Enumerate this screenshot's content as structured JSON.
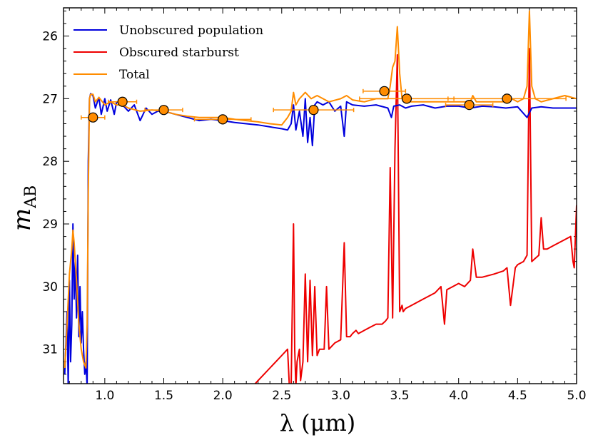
{
  "chart_data": {
    "type": "line",
    "title": "",
    "xlabel": "λ (μm)",
    "ylabel_main": "m",
    "ylabel_sub": "AB",
    "xlim": [
      0.65,
      5.0
    ],
    "ylim": [
      31.55,
      25.55
    ],
    "y_inverted": true,
    "grid": false,
    "legend_position": "top-left",
    "x_ticks": [
      1.0,
      1.5,
      2.0,
      2.5,
      3.0,
      3.5,
      4.0,
      4.5,
      5.0
    ],
    "x_tick_labels": [
      "1.0",
      "1.5",
      "2.0",
      "2.5",
      "3.0",
      "3.5",
      "4.0",
      "4.5",
      "5.0"
    ],
    "y_ticks": [
      26,
      27,
      28,
      29,
      30,
      31
    ],
    "y_tick_labels": [
      "26",
      "27",
      "28",
      "29",
      "30",
      "31"
    ],
    "series": [
      {
        "name": "Unobscured population",
        "color": "#0000dd",
        "x": [
          0.66,
          0.68,
          0.69,
          0.7,
          0.71,
          0.72,
          0.73,
          0.74,
          0.75,
          0.76,
          0.77,
          0.78,
          0.79,
          0.8,
          0.81,
          0.82,
          0.83,
          0.84,
          0.85,
          0.86,
          0.87,
          0.88,
          0.9,
          0.92,
          0.95,
          0.97,
          1.0,
          1.02,
          1.05,
          1.08,
          1.1,
          1.15,
          1.2,
          1.25,
          1.3,
          1.35,
          1.4,
          1.45,
          1.5,
          1.6,
          1.7,
          1.8,
          1.9,
          2.0,
          2.1,
          2.2,
          2.3,
          2.4,
          2.5,
          2.55,
          2.58,
          2.6,
          2.62,
          2.65,
          2.68,
          2.7,
          2.72,
          2.74,
          2.76,
          2.78,
          2.8,
          2.85,
          2.9,
          2.95,
          3.0,
          3.03,
          3.05,
          3.1,
          3.2,
          3.3,
          3.4,
          3.43,
          3.45,
          3.5,
          3.55,
          3.6,
          3.7,
          3.8,
          3.9,
          4.0,
          4.1,
          4.2,
          4.3,
          4.4,
          4.5,
          4.58,
          4.62,
          4.7,
          4.8,
          4.9,
          5.0
        ],
        "y": [
          31.4,
          30.4,
          31.6,
          29.9,
          31.2,
          30.6,
          29.0,
          30.2,
          29.6,
          30.5,
          29.5,
          30.8,
          30.0,
          30.9,
          30.4,
          31.0,
          31.4,
          31.2,
          31.6,
          28.0,
          27.0,
          26.92,
          26.95,
          27.15,
          26.98,
          27.25,
          27.0,
          27.2,
          27.02,
          27.25,
          27.05,
          27.1,
          27.2,
          27.1,
          27.35,
          27.15,
          27.25,
          27.2,
          27.2,
          27.25,
          27.3,
          27.35,
          27.33,
          27.35,
          27.38,
          27.4,
          27.42,
          27.45,
          27.48,
          27.5,
          27.4,
          27.1,
          27.5,
          27.2,
          27.6,
          27.0,
          27.7,
          27.3,
          27.75,
          27.1,
          27.05,
          27.1,
          27.05,
          27.2,
          27.12,
          27.6,
          27.05,
          27.1,
          27.12,
          27.1,
          27.15,
          27.3,
          27.12,
          27.1,
          27.15,
          27.12,
          27.1,
          27.15,
          27.12,
          27.12,
          27.15,
          27.12,
          27.13,
          27.15,
          27.13,
          27.3,
          27.15,
          27.13,
          27.15,
          27.15,
          27.15
        ]
      },
      {
        "name": "Obscured starburst",
        "color": "#ee0000",
        "x": [
          2.25,
          2.3,
          2.35,
          2.4,
          2.45,
          2.5,
          2.55,
          2.57,
          2.58,
          2.6,
          2.61,
          2.62,
          2.63,
          2.65,
          2.66,
          2.68,
          2.7,
          2.72,
          2.74,
          2.76,
          2.78,
          2.8,
          2.82,
          2.86,
          2.88,
          2.9,
          2.95,
          3.0,
          3.03,
          3.05,
          3.08,
          3.1,
          3.13,
          3.15,
          3.2,
          3.25,
          3.3,
          3.35,
          3.38,
          3.4,
          3.42,
          3.44,
          3.46,
          3.48,
          3.5,
          3.52,
          3.53,
          3.55,
          3.6,
          3.7,
          3.8,
          3.85,
          3.88,
          3.9,
          4.0,
          4.05,
          4.1,
          4.12,
          4.15,
          4.2,
          4.3,
          4.38,
          4.41,
          4.44,
          4.48,
          4.5,
          4.55,
          4.58,
          4.6,
          4.62,
          4.65,
          4.68,
          4.7,
          4.72,
          4.75,
          4.8,
          4.85,
          4.9,
          4.95,
          4.97,
          4.98,
          5.0
        ],
        "y": [
          31.6,
          31.5,
          31.4,
          31.3,
          31.2,
          31.1,
          31.0,
          31.8,
          31.6,
          29.0,
          31.0,
          31.6,
          31.2,
          31.0,
          31.5,
          31.2,
          29.8,
          31.2,
          29.9,
          31.1,
          30.0,
          31.1,
          31.0,
          31.0,
          30.0,
          31.0,
          30.9,
          30.85,
          29.3,
          30.8,
          30.8,
          30.75,
          30.7,
          30.75,
          30.7,
          30.65,
          30.6,
          30.6,
          30.55,
          30.5,
          28.1,
          30.5,
          27.8,
          26.3,
          30.4,
          30.3,
          30.4,
          30.35,
          30.3,
          30.2,
          30.1,
          30.0,
          30.6,
          30.05,
          29.95,
          30.0,
          29.9,
          29.4,
          29.85,
          29.85,
          29.8,
          29.75,
          29.7,
          30.3,
          29.7,
          29.65,
          29.6,
          29.5,
          26.2,
          29.6,
          29.55,
          29.5,
          28.9,
          29.4,
          29.4,
          29.35,
          29.3,
          29.25,
          29.2,
          29.6,
          29.7,
          28.7
        ]
      },
      {
        "name": "Total",
        "color": "#ff8c00",
        "x": [
          0.66,
          0.68,
          0.7,
          0.72,
          0.73,
          0.74,
          0.76,
          0.78,
          0.8,
          0.82,
          0.84,
          0.85,
          0.86,
          0.87,
          0.88,
          0.9,
          0.92,
          0.95,
          1.0,
          1.05,
          1.1,
          1.15,
          1.2,
          1.3,
          1.4,
          1.5,
          1.6,
          1.7,
          1.8,
          1.9,
          2.0,
          2.1,
          2.2,
          2.3,
          2.4,
          2.5,
          2.55,
          2.58,
          2.6,
          2.62,
          2.65,
          2.7,
          2.75,
          2.8,
          2.85,
          2.9,
          3.0,
          3.05,
          3.1,
          3.2,
          3.3,
          3.4,
          3.42,
          3.44,
          3.46,
          3.48,
          3.5,
          3.52,
          3.55,
          3.6,
          3.7,
          3.8,
          3.9,
          4.0,
          4.1,
          4.12,
          4.15,
          4.2,
          4.3,
          4.4,
          4.45,
          4.5,
          4.55,
          4.58,
          4.6,
          4.62,
          4.65,
          4.7,
          4.8,
          4.9,
          5.0
        ],
        "y": [
          31.3,
          30.6,
          29.8,
          29.4,
          29.1,
          29.3,
          29.9,
          30.6,
          31.0,
          31.2,
          31.3,
          30.6,
          28.5,
          27.0,
          26.93,
          26.93,
          27.05,
          26.98,
          27.1,
          27.05,
          27.1,
          27.1,
          27.15,
          27.2,
          27.18,
          27.2,
          27.25,
          27.28,
          27.3,
          27.3,
          27.3,
          27.33,
          27.35,
          27.37,
          27.4,
          27.42,
          27.3,
          27.2,
          26.9,
          27.1,
          27.0,
          26.9,
          27.0,
          26.95,
          27.0,
          27.05,
          27.0,
          26.95,
          27.02,
          27.05,
          27.0,
          27.0,
          26.8,
          26.5,
          26.4,
          25.85,
          26.6,
          27.0,
          27.05,
          27.05,
          27.05,
          27.05,
          27.05,
          27.05,
          27.05,
          26.95,
          27.05,
          27.05,
          27.05,
          27.05,
          27.0,
          27.05,
          27.0,
          26.8,
          25.6,
          26.8,
          27.0,
          27.05,
          27.0,
          26.95,
          27.0
        ]
      }
    ],
    "photometry": {
      "name": "Total",
      "color": "#ff8c00",
      "points": [
        {
          "x": 0.9,
          "y": 27.3,
          "xerr": 0.1
        },
        {
          "x": 1.15,
          "y": 27.05,
          "xerr": 0.12
        },
        {
          "x": 1.5,
          "y": 27.18,
          "xerr": 0.16
        },
        {
          "x": 2.0,
          "y": 27.33,
          "xerr": 0.24
        },
        {
          "x": 2.77,
          "y": 27.18,
          "xerr": 0.34
        },
        {
          "x": 3.37,
          "y": 26.88,
          "xerr": 0.18
        },
        {
          "x": 3.56,
          "y": 27.0,
          "xerr": 0.4
        },
        {
          "x": 4.09,
          "y": 27.1,
          "xerr": 0.2
        },
        {
          "x": 4.41,
          "y": 27.0,
          "xerr": 0.5
        }
      ]
    }
  }
}
